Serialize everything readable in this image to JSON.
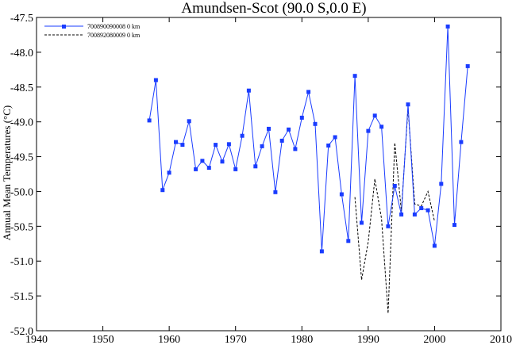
{
  "chart_data": {
    "type": "line",
    "title": "Amundsen-Scot (90.0 S,0.0 E)",
    "xlabel": "",
    "ylabel": "Annual Mean Temperatures (°C)",
    "xlim": [
      1940,
      2010
    ],
    "ylim": [
      -52.0,
      -47.5
    ],
    "x_ticks": [
      1940,
      1950,
      1960,
      1970,
      1980,
      1990,
      2000,
      2010
    ],
    "y_ticks": [
      -47.5,
      -48.0,
      -48.5,
      -49.0,
      -49.5,
      -50.0,
      -50.5,
      -51.0,
      -51.5,
      -52.0
    ],
    "tick_labels_x": [
      "1940",
      "1950",
      "1960",
      "1970",
      "1980",
      "1990",
      "2000",
      "2010"
    ],
    "tick_labels_y": [
      "-47.5",
      "-48.0",
      "-48.5",
      "-49.0",
      "-49.5",
      "-50.0",
      "-50.5",
      "-51.0",
      "-51.5",
      "-52.0"
    ],
    "grid": false,
    "legend_position": "top-left",
    "series": [
      {
        "name": "700890090008  0 km",
        "style": "solid",
        "marker": "square",
        "color": "#1a3cff",
        "x": [
          1957,
          1958,
          1959,
          1960,
          1961,
          1962,
          1963,
          1964,
          1965,
          1966,
          1967,
          1968,
          1969,
          1970,
          1971,
          1972,
          1973,
          1974,
          1975,
          1976,
          1977,
          1978,
          1979,
          1980,
          1981,
          1982,
          1983,
          1984,
          1985,
          1986,
          1987,
          1988,
          1989,
          1990,
          1991,
          1992,
          1993,
          1994,
          1995,
          1996,
          1997,
          1998,
          1999,
          2000,
          2001,
          2002,
          2003,
          2004,
          2005
        ],
        "values": [
          -48.98,
          -48.4,
          -49.98,
          -49.73,
          -49.29,
          -49.33,
          -48.99,
          -49.68,
          -49.56,
          -49.66,
          -49.33,
          -49.57,
          -49.32,
          -49.68,
          -49.2,
          -48.55,
          -49.64,
          -49.35,
          -49.1,
          -50.01,
          -49.27,
          -49.11,
          -49.39,
          -48.94,
          -48.57,
          -49.03,
          -50.86,
          -49.34,
          -49.22,
          -50.04,
          -50.71,
          -48.34,
          -50.45,
          -49.13,
          -48.91,
          -49.07,
          -50.5,
          -49.92,
          -50.33,
          -48.75,
          -50.33,
          -50.24,
          -50.27,
          -50.78,
          -49.89,
          -47.63,
          -50.48,
          -49.29,
          -48.2
        ]
      },
      {
        "name": "700892080009  0 km",
        "style": "dashed",
        "marker": "none",
        "color": "#000000",
        "x": [
          1988,
          1989,
          1990,
          1991,
          1992,
          1993,
          1994,
          1995,
          1996,
          1997,
          1998,
          1999,
          2000
        ],
        "values": [
          -50.08,
          -51.27,
          -50.72,
          -49.82,
          -50.39,
          -51.75,
          -49.3,
          -50.28,
          -48.8,
          -50.18,
          -50.21,
          -50.0,
          -50.43
        ]
      }
    ]
  }
}
